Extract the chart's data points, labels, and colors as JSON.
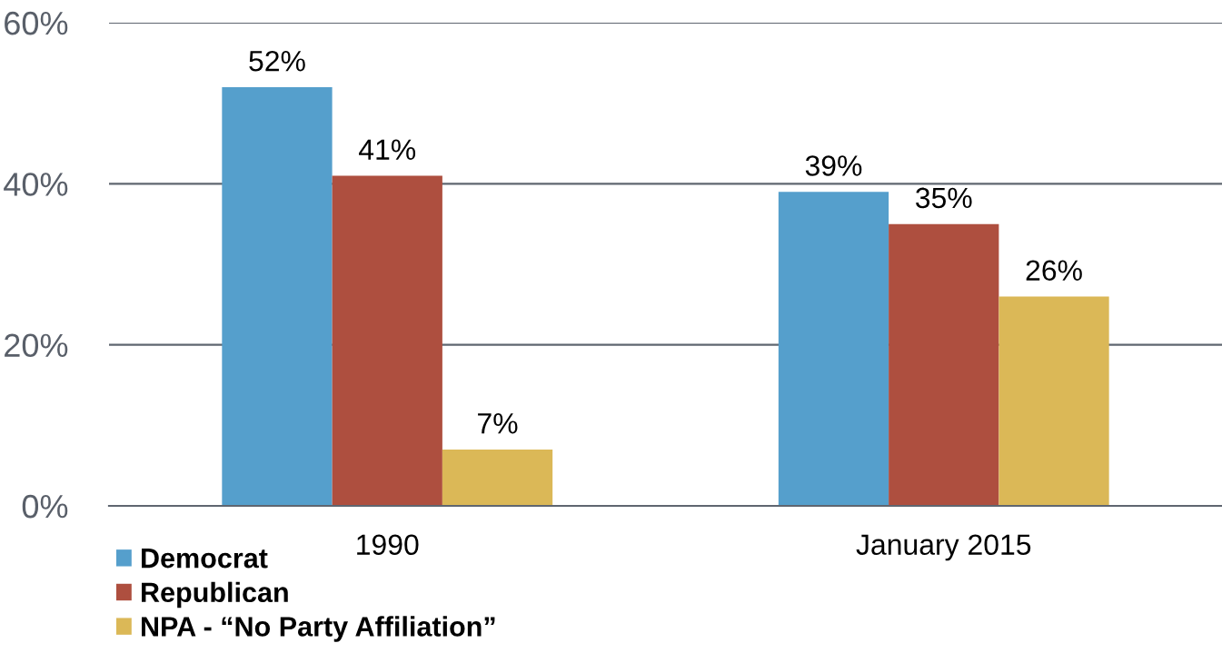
{
  "chart_data": {
    "type": "bar",
    "categories": [
      "1990",
      "January 2015"
    ],
    "series": [
      {
        "name": "Democrat",
        "color": "#559fcc",
        "values": [
          52,
          39
        ],
        "value_labels": [
          "52%",
          "39%"
        ]
      },
      {
        "name": "Republican",
        "color": "#ae4f3f",
        "values": [
          41,
          35
        ],
        "value_labels": [
          "41%",
          "35%"
        ]
      },
      {
        "name": "NPA - “No Party Affiliation”",
        "color": "#dbb857",
        "values": [
          7,
          26
        ],
        "value_labels": [
          "7%",
          "26%"
        ]
      }
    ],
    "ylim": [
      0,
      60
    ],
    "yticks": [
      {
        "value": 0,
        "label": "0%"
      },
      {
        "value": 20,
        "label": "20%"
      },
      {
        "value": 40,
        "label": "40%"
      },
      {
        "value": 60,
        "label": "60%"
      }
    ],
    "grid": "y",
    "legend": "bottom left"
  }
}
